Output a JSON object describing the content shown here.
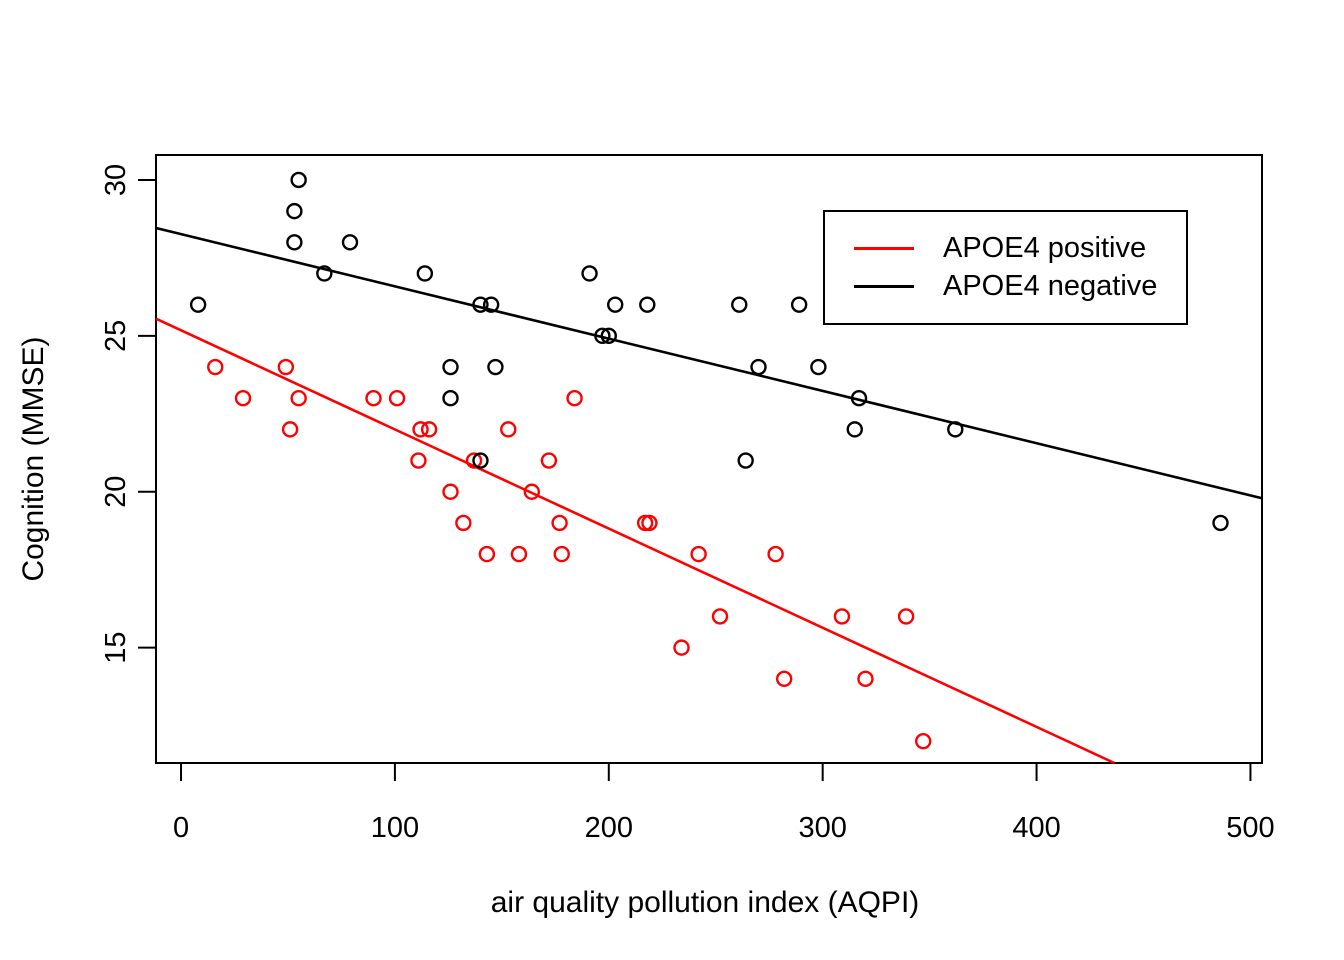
{
  "figure": {
    "background": "#ffffff"
  },
  "legend": {
    "items": [
      {
        "label": "APOE4 positive",
        "color": "#ff0000"
      },
      {
        "label": "APOE4 negative",
        "color": "#000000"
      }
    ]
  },
  "chart_data": {
    "type": "scatter",
    "title": "",
    "xlabel": "air quality pollution index (AQPI)",
    "ylabel": "Cognition (MMSE)",
    "x_ticks": [
      0,
      100,
      200,
      300,
      400,
      500
    ],
    "y_ticks": [
      15,
      20,
      25,
      30
    ],
    "xlim": [
      -11.7,
      505.4
    ],
    "ylim": [
      11.3,
      30.8
    ],
    "grid": false,
    "legend_position": "top-right-inside",
    "marker": "open-circle",
    "series": [
      {
        "name": "APOE4 positive",
        "color": "#ff0000",
        "points": [
          [
            16,
            24
          ],
          [
            29,
            23
          ],
          [
            49,
            24
          ],
          [
            51,
            22
          ],
          [
            55,
            23
          ],
          [
            90,
            23
          ],
          [
            101,
            23
          ],
          [
            111,
            21
          ],
          [
            112,
            22
          ],
          [
            116,
            22
          ],
          [
            126,
            20
          ],
          [
            132,
            19
          ],
          [
            137,
            21
          ],
          [
            143,
            18
          ],
          [
            153,
            22
          ],
          [
            158,
            18
          ],
          [
            164,
            20
          ],
          [
            172,
            21
          ],
          [
            177,
            19
          ],
          [
            178,
            18
          ],
          [
            184,
            23
          ],
          [
            217,
            19
          ],
          [
            219,
            19
          ],
          [
            234,
            15
          ],
          [
            242,
            18
          ],
          [
            252,
            16
          ],
          [
            278,
            18
          ],
          [
            282,
            14
          ],
          [
            309,
            16
          ],
          [
            320,
            14
          ],
          [
            339,
            16
          ],
          [
            347,
            12
          ]
        ],
        "fit_line": {
          "x1": -11.7,
          "y1": 25.55,
          "x2": 436.4,
          "y2": 11.3,
          "equation_approx": "MMSE = 25.2 - 0.032 * AQPI"
        }
      },
      {
        "name": "APOE4 negative",
        "color": "#000000",
        "points": [
          [
            8,
            26
          ],
          [
            53,
            29
          ],
          [
            53,
            28
          ],
          [
            55,
            30
          ],
          [
            67,
            27
          ],
          [
            79,
            28
          ],
          [
            114,
            27
          ],
          [
            126,
            23
          ],
          [
            126,
            24
          ],
          [
            140,
            21
          ],
          [
            140,
            26
          ],
          [
            145,
            26
          ],
          [
            147,
            24
          ],
          [
            191,
            27
          ],
          [
            197,
            25
          ],
          [
            200,
            25
          ],
          [
            203,
            26
          ],
          [
            218,
            26
          ],
          [
            261,
            26
          ],
          [
            264,
            21
          ],
          [
            270,
            24
          ],
          [
            289,
            26
          ],
          [
            298,
            24
          ],
          [
            315,
            22
          ],
          [
            317,
            23
          ],
          [
            362,
            22
          ],
          [
            486,
            19
          ]
        ],
        "fit_line": {
          "x1": -11.7,
          "y1": 28.46,
          "x2": 505.4,
          "y2": 19.79,
          "equation_approx": "MMSE = 28.3 - 0.017 * AQPI"
        }
      }
    ]
  }
}
